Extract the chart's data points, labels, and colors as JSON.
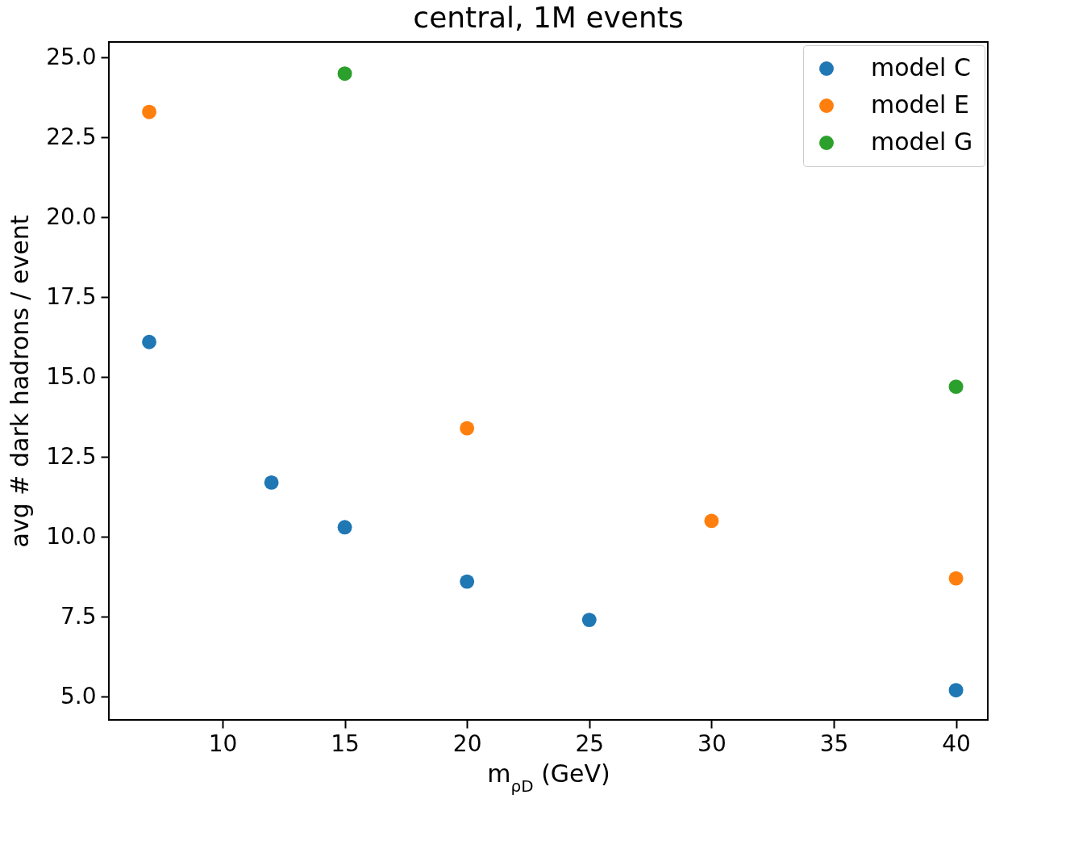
{
  "chart_data": {
    "type": "scatter",
    "title": "central, 1M events",
    "xlabel": "m$_{ρD}$ (GeV)",
    "ylabel": "avg # dark hadrons / event",
    "series": [
      {
        "name": "model C",
        "color": "#1f77b4",
        "x": [
          7,
          12,
          15,
          20,
          25,
          40
        ],
        "values": [
          16.1,
          11.7,
          10.3,
          8.6,
          7.4,
          5.2
        ]
      },
      {
        "name": "model E",
        "color": "#ff7f0e",
        "x": [
          7,
          20,
          30,
          40
        ],
        "values": [
          23.3,
          13.4,
          10.5,
          8.7
        ]
      },
      {
        "name": "model G",
        "color": "#2ca02c",
        "x": [
          15,
          40
        ],
        "values": [
          24.5,
          14.7
        ]
      }
    ],
    "xlim": [
      5.35,
      41.3
    ],
    "xticks": [
      10,
      15,
      20,
      25,
      30,
      35,
      40
    ],
    "ylim": [
      4.27,
      25.49
    ],
    "yticks": [
      {
        "value": 5,
        "label": "5.0"
      },
      {
        "value": 7.5,
        "label": "7.5"
      },
      {
        "value": 10,
        "label": "10.0"
      },
      {
        "value": 12.5,
        "label": "12.5"
      },
      {
        "value": 15,
        "label": "15.0"
      },
      {
        "value": 17.5,
        "label": "17.5"
      },
      {
        "value": 20,
        "label": "20.0"
      },
      {
        "value": 22.5,
        "label": "22.5"
      },
      {
        "value": 25,
        "label": "25.0"
      }
    ],
    "grid": false,
    "legend": "top right",
    "marker": "circle"
  }
}
